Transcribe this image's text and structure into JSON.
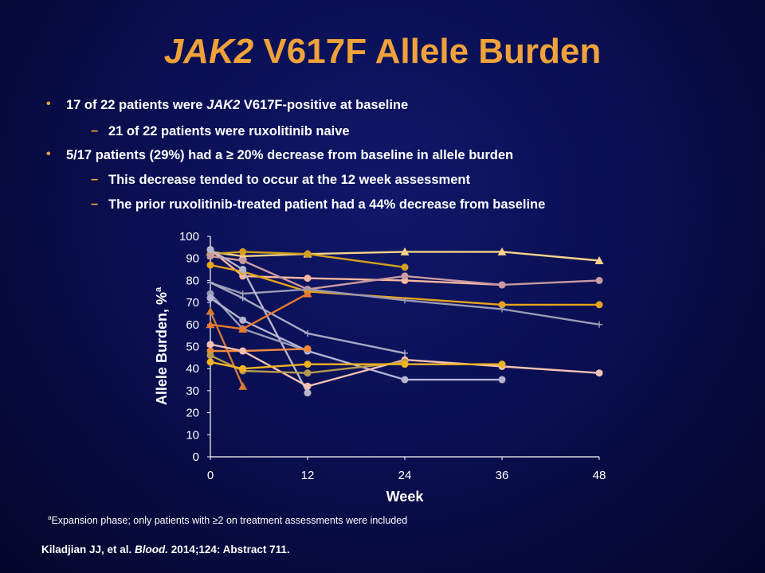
{
  "title": {
    "gene": "JAK2",
    "rest": " V617F Allele Burden"
  },
  "bullets": [
    {
      "level": 1,
      "pre": "17 of 22 patients were ",
      "em": "JAK2",
      "post": " V617F-positive at baseline"
    },
    {
      "level": 2,
      "marker": "–",
      "text": "21 of 22 patients were ruxolitinib naive"
    },
    {
      "level": 1,
      "pre": "5/17 patients (29%) had a ≥ 20% decrease from baseline in allele burden",
      "em": "",
      "post": ""
    },
    {
      "level": 2,
      "marker": "–",
      "text": "This decrease  tended to occur at the 12 week  assessment"
    },
    {
      "level": 2,
      "marker": "–",
      "text": "The prior ruxolitinib-treated patient had a 44% decrease from baseline"
    }
  ],
  "chart_data": {
    "type": "line",
    "xlabel": "Week",
    "ylabel": "Allele  Burden, %",
    "ylabel_sup": "a",
    "xticks": [
      0,
      12,
      24,
      36,
      48
    ],
    "yticks": [
      0,
      10,
      20,
      30,
      40,
      50,
      60,
      70,
      80,
      90,
      100
    ],
    "xlim": [
      0,
      48
    ],
    "ylim": [
      0,
      100
    ],
    "grid": false,
    "series": [
      {
        "color": "#f7d28a",
        "marker": "triangle",
        "x": [
          0,
          4,
          12,
          24,
          36,
          48
        ],
        "y": [
          93,
          91,
          92,
          93,
          93,
          89
        ]
      },
      {
        "color": "#d4a01c",
        "marker": "circle",
        "x": [
          0,
          4,
          12,
          24
        ],
        "y": [
          92,
          93,
          92,
          86
        ]
      },
      {
        "color": "#f8b8a0",
        "marker": "circle",
        "x": [
          0,
          4,
          12,
          24,
          36
        ],
        "y": [
          94,
          82,
          81,
          80,
          78
        ]
      },
      {
        "color": "#c99aa0",
        "marker": "circle",
        "x": [
          0,
          4,
          12,
          24,
          36,
          48
        ],
        "y": [
          91,
          89,
          76,
          82,
          78,
          80
        ]
      },
      {
        "color": "#e8a41a",
        "marker": "circle",
        "x": [
          0,
          4,
          12,
          36,
          48
        ],
        "y": [
          87,
          84,
          75,
          69,
          69
        ]
      },
      {
        "color": "#9a9ab4",
        "marker": "plus",
        "x": [
          0,
          4,
          12,
          24,
          36,
          48
        ],
        "y": [
          79,
          74,
          76,
          71,
          67,
          60
        ]
      },
      {
        "color": "#b6b6cc",
        "marker": "circle",
        "x": [
          0,
          4,
          12
        ],
        "y": [
          94,
          85,
          29
        ]
      },
      {
        "color": "#9a9ab4",
        "marker": "circle",
        "x": [
          0,
          4,
          12
        ],
        "y": [
          74,
          58,
          48
        ]
      },
      {
        "color": "#b4b4d4",
        "marker": "circle",
        "x": [
          0,
          4,
          12,
          24,
          36
        ],
        "y": [
          72,
          62,
          48,
          35,
          35
        ]
      },
      {
        "color": "#a8a8c4",
        "marker": "plus",
        "x": [
          0,
          4,
          12,
          24
        ],
        "y": [
          79,
          72,
          56,
          47
        ]
      },
      {
        "color": "#e87a2c",
        "marker": "triangle",
        "x": [
          0,
          4,
          12
        ],
        "y": [
          60,
          58,
          74
        ]
      },
      {
        "color": "#d27a34",
        "marker": "triangle",
        "x": [
          0,
          4
        ],
        "y": [
          66,
          32
        ]
      },
      {
        "color": "#f08a3a",
        "marker": "circle",
        "x": [
          0,
          4,
          12
        ],
        "y": [
          48,
          48,
          49
        ]
      },
      {
        "color": "#f5c0b4",
        "marker": "circle",
        "x": [
          0,
          4,
          12,
          24,
          36,
          48
        ],
        "y": [
          51,
          48,
          32,
          44,
          41,
          38
        ]
      },
      {
        "color": "#b89a4c",
        "marker": "circle",
        "x": [
          0,
          4,
          12,
          24
        ],
        "y": [
          46,
          39,
          38,
          43
        ]
      },
      {
        "color": "#f0b422",
        "marker": "circle",
        "x": [
          0,
          4,
          12,
          24,
          36
        ],
        "y": [
          43,
          40,
          42,
          42,
          42
        ]
      }
    ]
  },
  "footnote": {
    "sup": "a",
    "text": "Expansion phase; only patients with ≥2 on treatment assessments were included"
  },
  "citation": {
    "authors": "Kiladjian JJ, et al. ",
    "journal": "Blood.",
    "rest": " 2014;124: Abstract 711."
  }
}
